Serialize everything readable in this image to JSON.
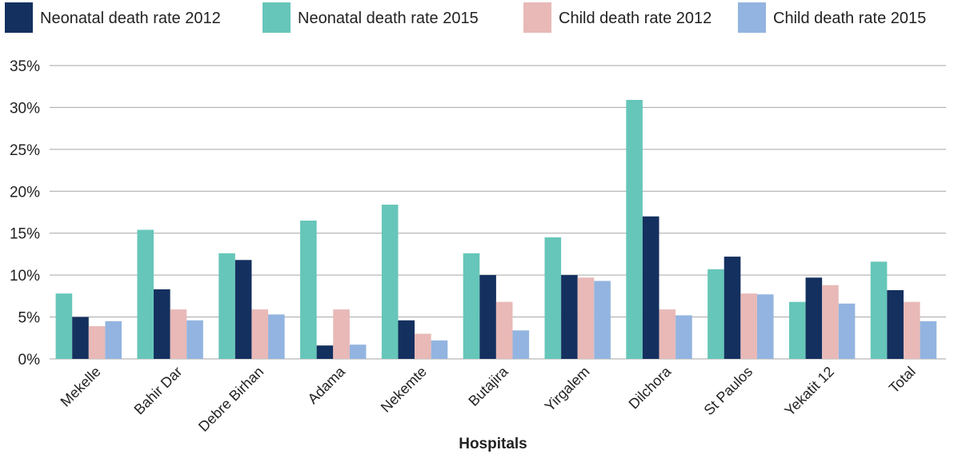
{
  "chart_data": {
    "type": "bar",
    "xlabel": "Hospitals",
    "ylabel": "",
    "ylim": [
      0,
      35
    ],
    "yticks": [
      "0%",
      "5%",
      "10%",
      "15%",
      "20%",
      "25%",
      "30%",
      "35%"
    ],
    "grid": true,
    "legend_position": "top",
    "categories": [
      "Mekelle",
      "Bahir Dar",
      "Debre Birhan",
      "Adama",
      "Nekemte",
      "Butajira",
      "Yirgalem",
      "Dilchora",
      "St Paulos",
      "Yekatit 12",
      "Total"
    ],
    "series": [
      {
        "name": "Neonatal death rate 2015",
        "color": "#66c6b9",
        "values": [
          7.8,
          15.4,
          12.6,
          16.5,
          18.4,
          12.6,
          14.5,
          30.9,
          10.7,
          6.8,
          11.6
        ]
      },
      {
        "name": "Neonatal death rate 2012",
        "color": "#14305f",
        "values": [
          5.0,
          8.3,
          11.8,
          1.6,
          4.6,
          10.0,
          10.0,
          17.0,
          12.2,
          9.7,
          8.2
        ]
      },
      {
        "name": "Child death rate 2012",
        "color": "#e8b9b7",
        "values": [
          3.9,
          5.9,
          5.9,
          5.9,
          3.0,
          6.8,
          9.7,
          5.9,
          7.8,
          8.8,
          6.8
        ]
      },
      {
        "name": "Child death rate 2015",
        "color": "#93b4e0",
        "values": [
          4.5,
          4.6,
          5.3,
          1.7,
          2.2,
          3.4,
          9.3,
          5.2,
          7.7,
          6.6,
          4.5
        ]
      }
    ],
    "legend_order": [
      1,
      0,
      2,
      3
    ]
  }
}
